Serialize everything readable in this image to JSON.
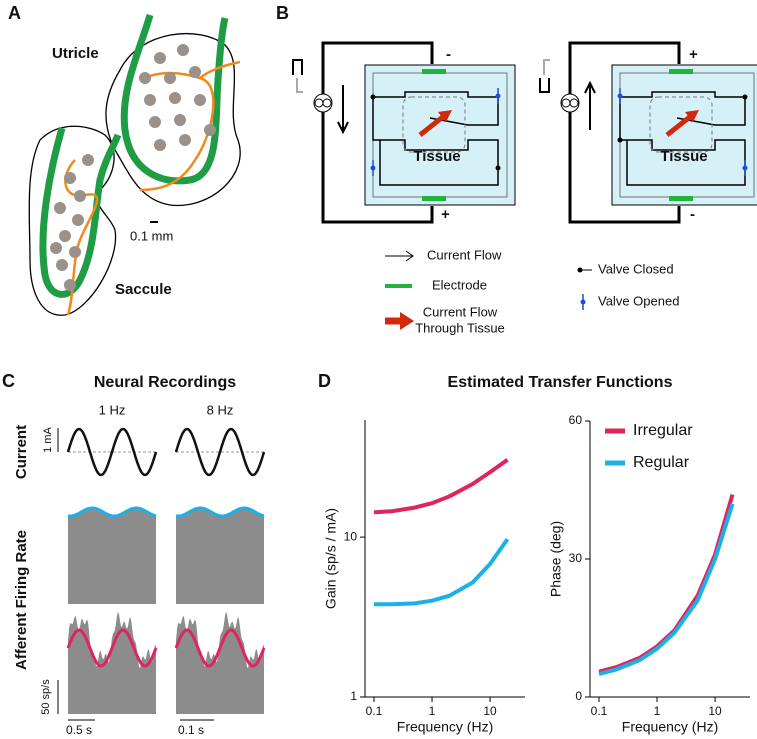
{
  "panels": {
    "A": {
      "label": "A",
      "utricle": "Utricle",
      "saccule": "Saccule",
      "scale": "0.1 mm"
    },
    "B": {
      "label": "B",
      "signs": [
        "-",
        "+",
        "+",
        "-"
      ],
      "tissue": [
        "Tissue",
        "Tissue"
      ],
      "legend": {
        "current_flow": "Current Flow",
        "electrode": "Electrode",
        "tissue_flow": [
          "Current Flow",
          "Through Tissue"
        ],
        "valve_closed": "Valve Closed",
        "valve_opened": "Valve Opened"
      }
    },
    "C": {
      "label": "C",
      "title": "Neural Recordings",
      "freqs": [
        "1 Hz",
        "8 Hz"
      ],
      "current": "Current",
      "current_scale": "1 mA",
      "rate": "Afferent Firing Rate",
      "rate_scale": "50 sp/s",
      "time_scales": [
        "0.5 s",
        "0.1 s"
      ]
    },
    "D": {
      "label": "D",
      "title": "Estimated Transfer Functions"
    }
  },
  "chart_data": [
    {
      "type": "line",
      "xscale": "log",
      "yscale": "log",
      "ylabel": "Gain (sp/s / mA)",
      "xlabel": "Frequency (Hz)",
      "xlim": [
        0.07,
        40
      ],
      "xticks": [
        0.1,
        1,
        10
      ],
      "ylim": [
        1,
        54
      ],
      "yticks": [
        1,
        10
      ],
      "x": [
        0.1,
        0.2,
        0.5,
        1,
        2,
        5,
        10,
        20
      ],
      "series": [
        {
          "color": "#e0245e",
          "values": [
            14.3,
            14.5,
            15.3,
            16.3,
            18,
            21.5,
            25.5,
            30.5
          ]
        },
        {
          "color": "#1ab0e8",
          "values": [
            3.8,
            3.8,
            3.85,
            4.0,
            4.3,
            5.2,
            6.8,
            9.7
          ]
        }
      ]
    },
    {
      "type": "line",
      "xscale": "log",
      "ylabel": "Phase (deg)",
      "xlabel": "Frequency (Hz)",
      "xlim": [
        0.07,
        40
      ],
      "xticks": [
        0.1,
        1,
        10
      ],
      "ylim": [
        0,
        60
      ],
      "yticks": [
        0,
        30,
        60
      ],
      "legend": "upper left",
      "x": [
        0.1,
        0.2,
        0.5,
        1,
        2,
        5,
        10,
        20
      ],
      "series": [
        {
          "name": "Irregular",
          "color": "#e0245e",
          "values": [
            5.5,
            6.5,
            8.5,
            11,
            14.5,
            22,
            31,
            44
          ]
        },
        {
          "name": "Regular",
          "color": "#1ab0e8",
          "values": [
            5,
            6,
            8,
            10.5,
            14,
            21,
            30,
            42
          ]
        }
      ]
    }
  ]
}
